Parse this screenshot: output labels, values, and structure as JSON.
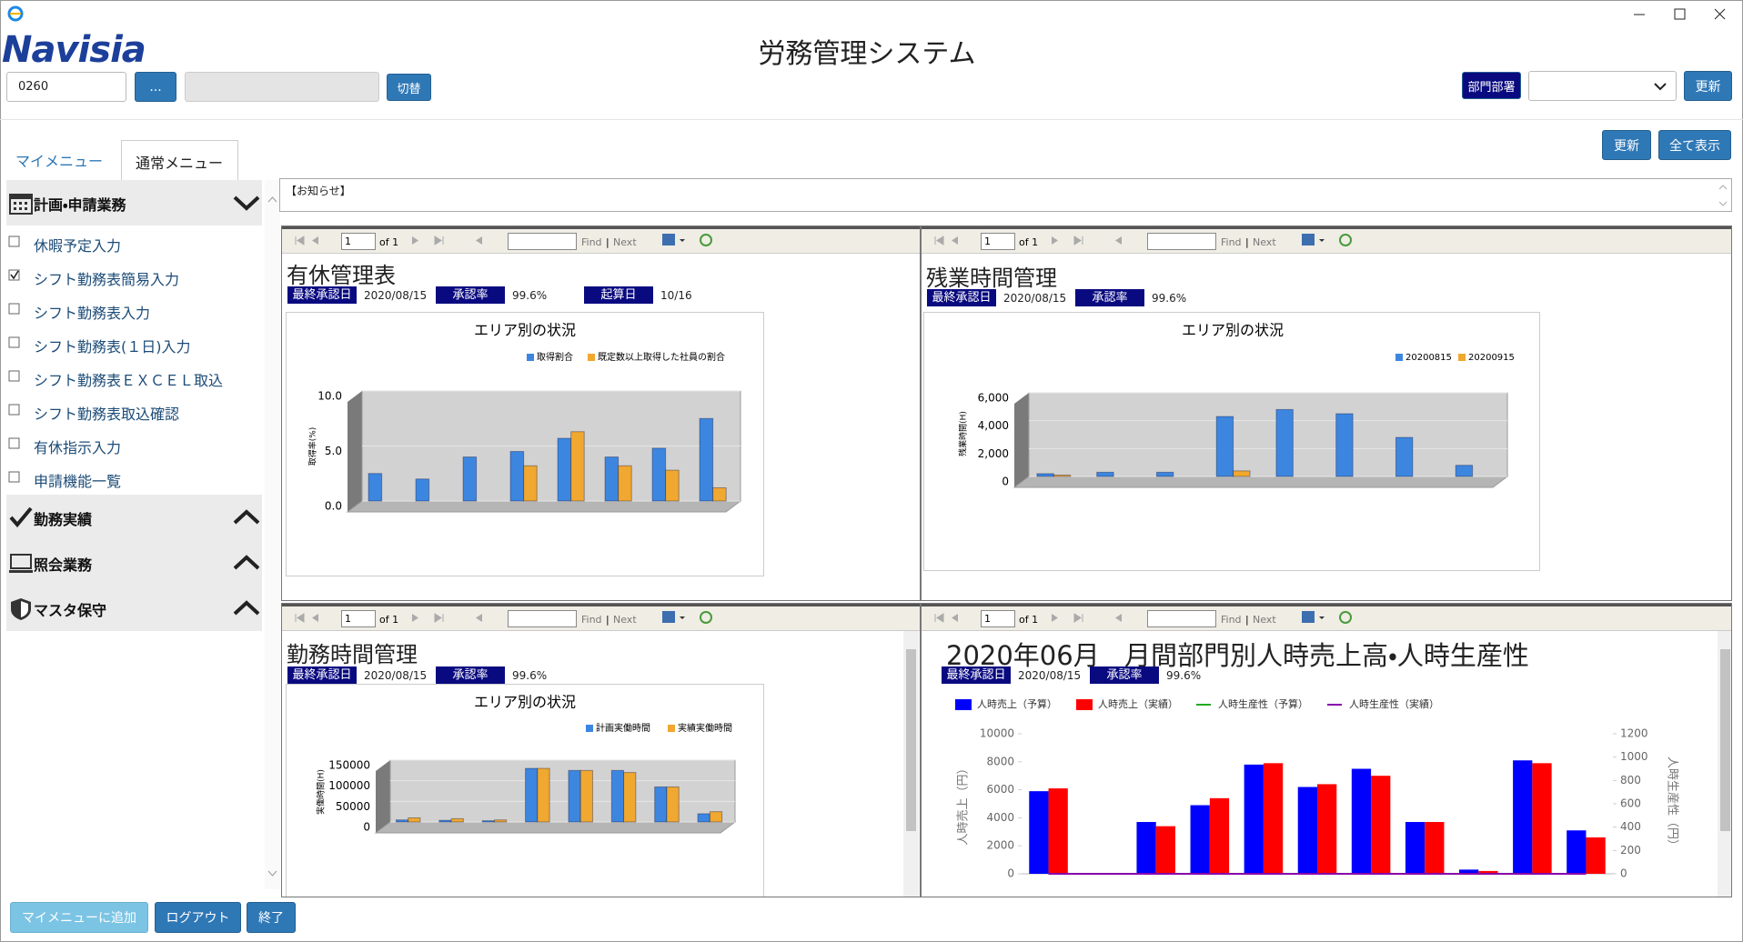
{
  "window": {
    "title": "労務管理システム"
  },
  "logo": {
    "name": "Navisia"
  },
  "header": {
    "code": "0260",
    "lookup_button": "...",
    "switch_button": "切替",
    "dept_button": "部門部署",
    "update_button": "更新"
  },
  "tabs": [
    "マイメニュー",
    "通常メニュー"
  ],
  "actions": [
    "更新",
    "全て表示"
  ],
  "menu": [
    {
      "label": "計画・申請業務",
      "expanded": true,
      "items": [
        {
          "label": "休暇予定入力",
          "checked": false
        },
        {
          "label": "シフト勤務表簡易入力",
          "checked": true
        },
        {
          "label": "シフト勤務表入力",
          "checked": false
        },
        {
          "label": "シフト勤務表(１日)入力",
          "checked": false
        },
        {
          "label": "シフト勤務表ＥＸＣＥＬ取込",
          "checked": false
        },
        {
          "label": "シフト勤務表取込確認",
          "checked": false
        },
        {
          "label": "有休指示入力",
          "checked": false
        },
        {
          "label": "申請機能一覧",
          "checked": false
        }
      ]
    },
    {
      "label": "勤務実績",
      "expanded": false
    },
    {
      "label": "照会業務",
      "expanded": false
    },
    {
      "label": "マスタ保守",
      "expanded": false
    }
  ],
  "notice": "【お知らせ】",
  "report_toolbar": {
    "page": "1",
    "of": "of 1",
    "find": "Find",
    "separator": "|",
    "next": "Next"
  },
  "panels": [
    {
      "title": "有休管理表",
      "meta": [
        {
          "label": "最終承認日",
          "value": "2020/08/15"
        },
        {
          "label": "承認率",
          "value": "99.6%"
        },
        {
          "label": "起算日",
          "value": "10/16"
        }
      ],
      "chart": {
        "type": "bar",
        "title": "エリア別の状況",
        "y_label": "取得率(%)",
        "series": [
          {
            "name": "取得割合",
            "color": "#3d86e0",
            "values": [
              2.5,
              2.0,
              4.0,
              4.5,
              5.7,
              4.0,
              4.8,
              7.5
            ]
          },
          {
            "name": "既定数以上取得した社員の割合",
            "color": "#f0a830",
            "values": [
              0,
              0,
              0,
              3.2,
              6.3,
              3.2,
              2.8,
              1.2
            ]
          }
        ],
        "ylim": [
          0,
          10
        ],
        "yticks": [
          {
            "value": 0,
            "label": "0.0"
          },
          {
            "value": 5,
            "label": "5.0"
          },
          {
            "value": 10,
            "label": "10.0"
          }
        ],
        "grid": true
      }
    },
    {
      "title": "残業時間管理",
      "meta": [
        {
          "label": "最終承認日",
          "value": "2020/08/15"
        },
        {
          "label": "承認率",
          "value": "99.6%"
        }
      ],
      "chart": {
        "type": "bar",
        "title": "エリア別の状況",
        "y_label": "残業時間(H)",
        "series": [
          {
            "name": "20200815",
            "color": "#3d86e0",
            "values": [
              200,
              300,
              300,
              4300,
              4800,
              4500,
              2800,
              800
            ]
          },
          {
            "name": "20200915",
            "color": "#f0a830",
            "values": [
              100,
              0,
              0,
              400,
              0,
              0,
              0,
              0
            ]
          }
        ],
        "ylim": [
          0,
          6000
        ],
        "yticks": [
          0,
          {
            "value": 2000,
            "label": "2,000"
          },
          {
            "value": 4000,
            "label": "4,000"
          },
          {
            "value": 6000,
            "label": "6,000"
          }
        ],
        "grid": true
      }
    },
    {
      "title": "勤務時間管理",
      "meta": [
        {
          "label": "最終承認日",
          "value": "2020/08/15"
        },
        {
          "label": "承認率",
          "value": "99.6%"
        }
      ],
      "chart": {
        "type": "bar",
        "title": "エリア別の状況",
        "y_label": "実働時間(H)",
        "series": [
          {
            "name": "計画実働時間",
            "color": "#3d86e0",
            "values": [
              5000,
              4000,
              3000,
              130000,
              125000,
              125000,
              85000,
              20000
            ]
          },
          {
            "name": "実績実働時間",
            "color": "#f0a830",
            "values": [
              10000,
              8000,
              5000,
              130000,
              125000,
              120000,
              85000,
              25000
            ]
          }
        ],
        "ylim": [
          0,
          150000
        ],
        "yticks": [
          0,
          50000,
          100000,
          150000
        ],
        "grid": true
      }
    },
    {
      "title": "2020年06月",
      "subtitle": "月間部門別人時売上高・人時生産性",
      "meta": [
        {
          "label": "最終承認日",
          "value": "2020/08/15"
        },
        {
          "label": "承認率",
          "value": "99.6%"
        }
      ],
      "chart": {
        "type": "combo",
        "y_label": "人時売上（円）",
        "y2_label": "人時生産性（円）",
        "series": [
          {
            "name": "人時売上（予算）",
            "color": "#0000ff",
            "values": [
              5900,
              0,
              3700,
              4900,
              7800,
              6200,
              7500,
              3700,
              300,
              8100,
              3100
            ]
          },
          {
            "name": "人時売上（実績）",
            "color": "#ff0000",
            "values": [
              6100,
              0,
              3400,
              5400,
              7900,
              6400,
              7000,
              3700,
              200,
              7900,
              2600
            ]
          },
          {
            "name": "人時生産性（予算）",
            "color": "#22aa22",
            "type": "line",
            "axis": "y2",
            "values": [
              0,
              0,
              0,
              0,
              0,
              0,
              0,
              0,
              0,
              0,
              0
            ]
          },
          {
            "name": "人時生産性（実績）",
            "color": "#8800aa",
            "type": "line",
            "axis": "y2",
            "values": [
              0,
              0,
              0,
              0,
              0,
              0,
              0,
              0,
              0,
              0,
              0
            ]
          }
        ],
        "ylim": [
          0,
          10000
        ],
        "yticks": [
          0,
          2000,
          4000,
          6000,
          8000,
          10000
        ],
        "y2lim": [
          0,
          1200
        ],
        "y2ticks": [
          0,
          200,
          400,
          600,
          800,
          1000,
          1200
        ],
        "grid": false
      }
    }
  ],
  "footer": [
    "マイメニューに追加",
    "ログアウト",
    "終了"
  ]
}
